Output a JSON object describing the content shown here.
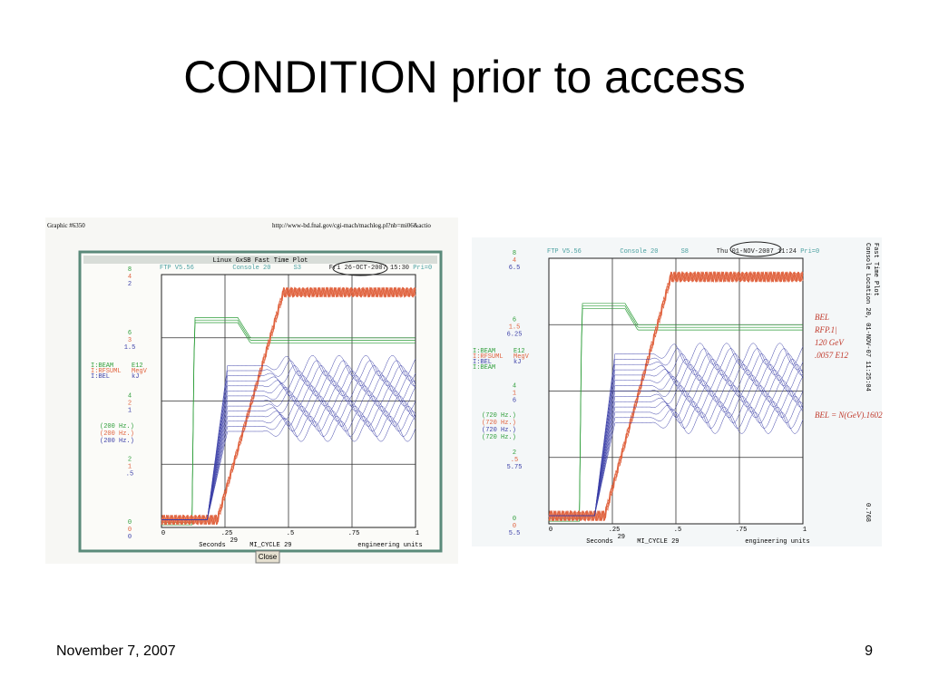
{
  "slide": {
    "title": "CONDITION prior to access",
    "footer_date": "November 7, 2007",
    "page_number": "9"
  },
  "left_plot": {
    "caption": "Graphic #6350",
    "url": "http://www-bd.fnal.gov/cgi-mach/machlog.pl?nb=mi06&actio",
    "window_title": "Linux GxSB  Fast Time Plot",
    "header": [
      "FTP V5.56",
      "Console  20",
      "S3",
      "Fri 26-OCT-2007 15:30",
      "Pri=0"
    ],
    "y_labels": [
      [
        "8",
        "4",
        "2"
      ],
      [
        "6",
        "3",
        "1.5"
      ],
      [
        "4",
        "2",
        "1"
      ],
      [
        "2",
        "1",
        ".5"
      ],
      [
        "0",
        "0",
        "0"
      ]
    ],
    "legend": [
      [
        "I:BEAM",
        "E12"
      ],
      [
        "I:RFSUML",
        "MegV"
      ],
      [
        "I:BEL",
        "kJ"
      ]
    ],
    "rates": [
      "(200 Hz.)",
      "(200 Hz.)",
      "(200 Hz.)"
    ],
    "x_labels": [
      "0",
      ".25",
      ".5",
      ".75",
      "1"
    ],
    "cycle": "29",
    "footer": [
      "Seconds",
      "MI_CYCLE  29",
      "engineering units"
    ],
    "button": "Close"
  },
  "right_plot": {
    "header": [
      "FTP V5.56",
      "Console  20",
      "S8",
      "Thu 01-NOV-2007 11:24",
      "Pri=0"
    ],
    "y_labels": [
      [
        "8",
        "4",
        "6.5"
      ],
      [
        "6",
        "1.5",
        "6.25"
      ],
      [
        "4",
        "1",
        "6"
      ],
      [
        "2",
        ".5",
        "5.75"
      ],
      [
        "0",
        "0",
        "5.5"
      ]
    ],
    "legend": [
      [
        "I:BEAM",
        "E12"
      ],
      [
        "I:RFSUML",
        "MegV"
      ],
      [
        "I:BEL",
        "kJ"
      ],
      [
        "I:BEAM",
        ""
      ]
    ],
    "rates": [
      "(720 Hz.)",
      "(720 Hz.)",
      "(720 Hz.)",
      "(720 Hz.)"
    ],
    "x_labels": [
      "0",
      ".25",
      ".5",
      ".75",
      "1"
    ],
    "cycle": "29",
    "footer": [
      "Seconds",
      "MI_CYCLE  29",
      "engineering units"
    ],
    "side_text": [
      "Console Location 20,  01-NOV-07 11:25:04",
      "Fast Time Plot"
    ],
    "side_value": "0.768",
    "notes": [
      "BEL",
      "RFP.1|",
      "120 GeV",
      ".0057 E12",
      "BEL = N(GeV).1602"
    ]
  }
}
